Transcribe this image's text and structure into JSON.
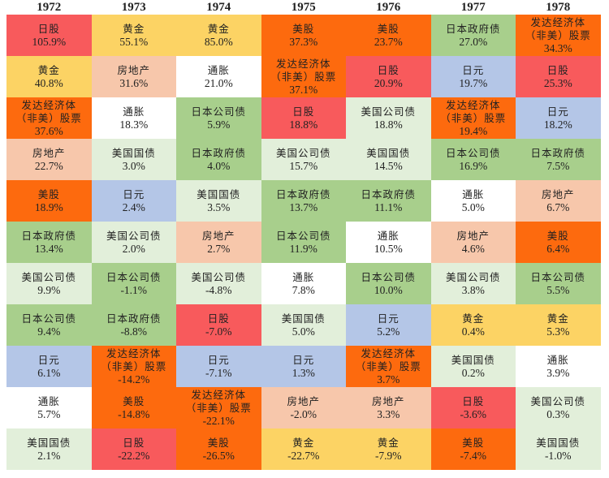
{
  "chart_data": {
    "type": "table",
    "colors": {
      "日股": "#f85a5c",
      "黄金": "#fcd364",
      "发达经济体（非美）股票": "#fd6a0e",
      "房地产": "#f7c7ab",
      "通胀": "#ffffff",
      "日本公司债": "#a8cf8c",
      "美国国债": "#e2efda",
      "美股": "#fd6a0e",
      "日本政府债": "#a8cf8c",
      "美国公司债": "#e2efda",
      "日元": "#b4c6e7"
    },
    "years": [
      {
        "year": "1972",
        "cells": [
          {
            "asset": "日股",
            "value": "105.9%"
          },
          {
            "asset": "黄金",
            "value": "40.8%"
          },
          {
            "asset": "发达经济体（非美）股票",
            "value": "37.6%"
          },
          {
            "asset": "房地产",
            "value": "22.7%"
          },
          {
            "asset": "美股",
            "value": "18.9%"
          },
          {
            "asset": "日本政府债",
            "value": "13.4%"
          },
          {
            "asset": "美国公司债",
            "value": "9.9%"
          },
          {
            "asset": "日本公司债",
            "value": "9.4%"
          },
          {
            "asset": "日元",
            "value": "6.1%"
          },
          {
            "asset": "通胀",
            "value": "5.7%"
          },
          {
            "asset": "美国国债",
            "value": "2.1%"
          }
        ]
      },
      {
        "year": "1973",
        "cells": [
          {
            "asset": "黄金",
            "value": "55.1%"
          },
          {
            "asset": "房地产",
            "value": "31.6%"
          },
          {
            "asset": "通胀",
            "value": "18.3%"
          },
          {
            "asset": "美国国债",
            "value": "3.0%"
          },
          {
            "asset": "日元",
            "value": "2.4%"
          },
          {
            "asset": "美国公司债",
            "value": "2.0%"
          },
          {
            "asset": "日本公司债",
            "value": "-1.1%"
          },
          {
            "asset": "日本政府债",
            "value": "-8.8%"
          },
          {
            "asset": "发达经济体（非美）股票",
            "value": "-14.2%"
          },
          {
            "asset": "美股",
            "value": "-14.8%"
          },
          {
            "asset": "日股",
            "value": "-22.2%"
          }
        ]
      },
      {
        "year": "1974",
        "cells": [
          {
            "asset": "黄金",
            "value": "85.0%"
          },
          {
            "asset": "通胀",
            "value": "21.0%"
          },
          {
            "asset": "日本公司债",
            "value": "5.9%"
          },
          {
            "asset": "日本政府债",
            "value": "4.0%"
          },
          {
            "asset": "美国国债",
            "value": "3.5%"
          },
          {
            "asset": "房地产",
            "value": "2.7%"
          },
          {
            "asset": "美国公司债",
            "value": "-4.8%"
          },
          {
            "asset": "日股",
            "value": "-7.0%"
          },
          {
            "asset": "日元",
            "value": "-7.1%"
          },
          {
            "asset": "发达经济体（非美）股票",
            "value": "-22.1%"
          },
          {
            "asset": "美股",
            "value": "-26.5%"
          }
        ]
      },
      {
        "year": "1975",
        "cells": [
          {
            "asset": "美股",
            "value": "37.3%"
          },
          {
            "asset": "发达经济体（非美）股票",
            "value": "37.1%"
          },
          {
            "asset": "日股",
            "value": "18.8%"
          },
          {
            "asset": "美国公司债",
            "value": "15.7%"
          },
          {
            "asset": "日本政府债",
            "value": "13.7%"
          },
          {
            "asset": "日本公司债",
            "value": "11.9%"
          },
          {
            "asset": "通胀",
            "value": "7.8%"
          },
          {
            "asset": "美国国债",
            "value": "5.0%"
          },
          {
            "asset": "日元",
            "value": "1.3%"
          },
          {
            "asset": "房地产",
            "value": "-2.0%"
          },
          {
            "asset": "黄金",
            "value": "-22.7%"
          }
        ]
      },
      {
        "year": "1976",
        "cells": [
          {
            "asset": "美股",
            "value": "23.7%"
          },
          {
            "asset": "日股",
            "value": "20.9%"
          },
          {
            "asset": "美国公司债",
            "value": "18.8%"
          },
          {
            "asset": "美国国债",
            "value": "14.5%"
          },
          {
            "asset": "日本政府债",
            "value": "11.1%"
          },
          {
            "asset": "通胀",
            "value": "10.5%"
          },
          {
            "asset": "日本公司债",
            "value": "10.0%"
          },
          {
            "asset": "日元",
            "value": "5.2%"
          },
          {
            "asset": "发达经济体（非美）股票",
            "value": "3.7%"
          },
          {
            "asset": "房地产",
            "value": "3.3%"
          },
          {
            "asset": "黄金",
            "value": "-7.9%"
          }
        ]
      },
      {
        "year": "1977",
        "cells": [
          {
            "asset": "日本政府债",
            "value": "27.0%"
          },
          {
            "asset": "日元",
            "value": "19.7%"
          },
          {
            "asset": "发达经济体（非美）股票",
            "value": "19.4%"
          },
          {
            "asset": "日本公司债",
            "value": "16.9%"
          },
          {
            "asset": "通胀",
            "value": "5.0%"
          },
          {
            "asset": "房地产",
            "value": "4.6%"
          },
          {
            "asset": "美国公司债",
            "value": "3.8%"
          },
          {
            "asset": "黄金",
            "value": "0.4%"
          },
          {
            "asset": "美国国债",
            "value": "0.2%"
          },
          {
            "asset": "日股",
            "value": "-3.6%"
          },
          {
            "asset": "美股",
            "value": "-7.4%"
          }
        ]
      },
      {
        "year": "1978",
        "cells": [
          {
            "asset": "发达经济体（非美）股票",
            "value": "34.3%"
          },
          {
            "asset": "日股",
            "value": "25.3%"
          },
          {
            "asset": "日元",
            "value": "18.2%"
          },
          {
            "asset": "日本政府债",
            "value": "7.5%"
          },
          {
            "asset": "房地产",
            "value": "6.7%"
          },
          {
            "asset": "美股",
            "value": "6.4%"
          },
          {
            "asset": "日本公司债",
            "value": "5.5%"
          },
          {
            "asset": "黄金",
            "value": "5.3%"
          },
          {
            "asset": "通胀",
            "value": "3.9%"
          },
          {
            "asset": "美国公司债",
            "value": "0.3%"
          },
          {
            "asset": "美国国债",
            "value": "-1.0%"
          }
        ]
      }
    ]
  }
}
